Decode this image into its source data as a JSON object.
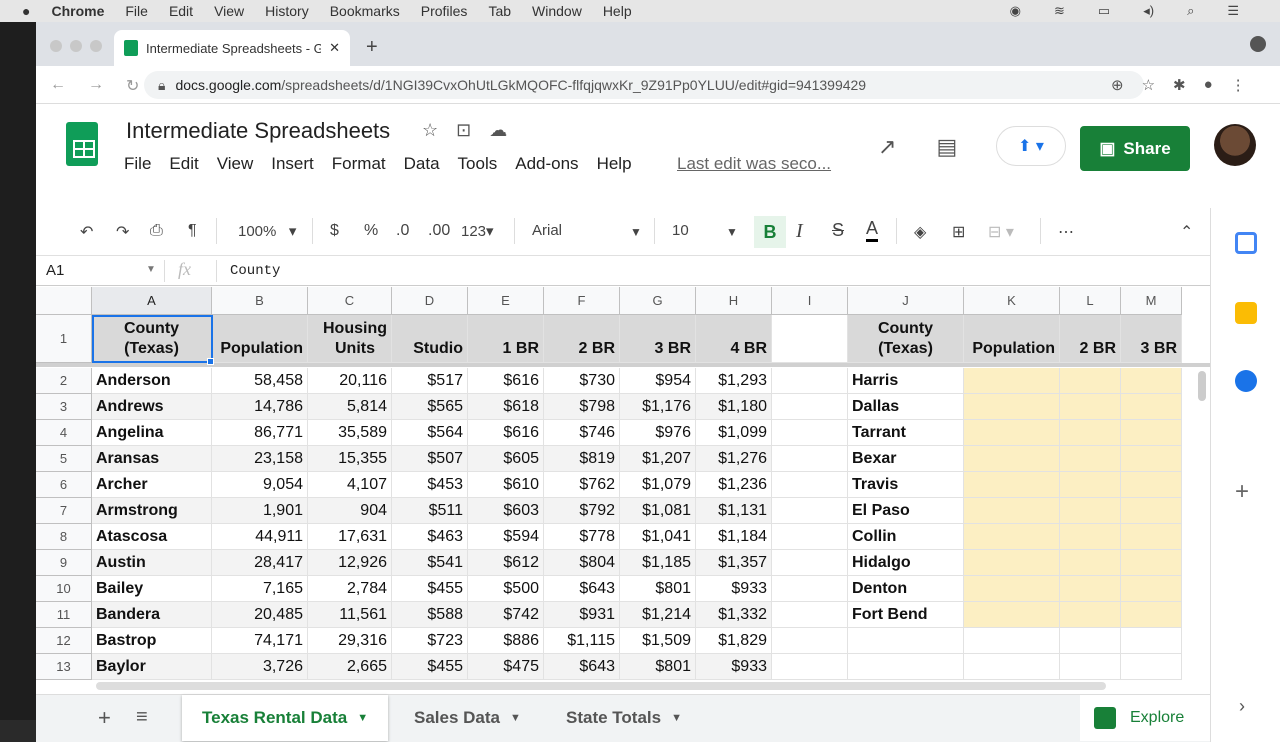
{
  "mac": {
    "apple": "",
    "menu": [
      "Chrome",
      "File",
      "Edit",
      "View",
      "History",
      "Bookmarks",
      "Profiles",
      "Tab",
      "Window",
      "Help"
    ]
  },
  "browser": {
    "tab_title": "Intermediate Spreadsheets - G",
    "url_host": "docs.google.com",
    "url_path": "/spreadsheets/d/1NGI39CvxOhUtLGkMQOFC-flfqjqwxKr_9Z91Pp0YLUU/edit#gid=941399429"
  },
  "doc": {
    "title": "Intermediate Spreadsheets",
    "menu": [
      "File",
      "Edit",
      "View",
      "Insert",
      "Format",
      "Data",
      "Tools",
      "Add-ons",
      "Help"
    ],
    "last_edit": "Last edit was seco...",
    "share": "Share"
  },
  "toolbar": {
    "zoom": "100%",
    "currency": "$",
    "percent": "%",
    "dec_less": ".0",
    "dec_more": ".00",
    "format": "123",
    "font": "Arial",
    "size": "10",
    "bold": "B",
    "italic": "I",
    "strike": "S",
    "textcolor": "A",
    "more": "⋯"
  },
  "formula": {
    "cell_ref": "A1",
    "fx": "fx",
    "value": "County"
  },
  "grid": {
    "columns": [
      "A",
      "B",
      "C",
      "D",
      "E",
      "F",
      "G",
      "H",
      "I",
      "J",
      "K",
      "L",
      "M"
    ],
    "header": [
      "County\n(Texas)",
      "Population",
      "Housing\nUnits",
      "Studio",
      "1 BR",
      "2 BR",
      "3 BR",
      "4 BR",
      "",
      "County\n(Texas)",
      "Population",
      "2 BR",
      "3 BR"
    ],
    "rows": [
      [
        "Anderson",
        "58,458",
        "20,116",
        "$517",
        "$616",
        "$730",
        "$954",
        "$1,293",
        "",
        "Harris"
      ],
      [
        "Andrews",
        "14,786",
        "5,814",
        "$565",
        "$618",
        "$798",
        "$1,176",
        "$1,180",
        "",
        "Dallas"
      ],
      [
        "Angelina",
        "86,771",
        "35,589",
        "$564",
        "$616",
        "$746",
        "$976",
        "$1,099",
        "",
        "Tarrant"
      ],
      [
        "Aransas",
        "23,158",
        "15,355",
        "$507",
        "$605",
        "$819",
        "$1,207",
        "$1,276",
        "",
        "Bexar"
      ],
      [
        "Archer",
        "9,054",
        "4,107",
        "$453",
        "$610",
        "$762",
        "$1,079",
        "$1,236",
        "",
        "Travis"
      ],
      [
        "Armstrong",
        "1,901",
        "904",
        "$511",
        "$603",
        "$792",
        "$1,081",
        "$1,131",
        "",
        "El Paso"
      ],
      [
        "Atascosa",
        "44,911",
        "17,631",
        "$463",
        "$594",
        "$778",
        "$1,041",
        "$1,184",
        "",
        "Collin"
      ],
      [
        "Austin",
        "28,417",
        "12,926",
        "$541",
        "$612",
        "$804",
        "$1,185",
        "$1,357",
        "",
        "Hidalgo"
      ],
      [
        "Bailey",
        "7,165",
        "2,784",
        "$455",
        "$500",
        "$643",
        "$801",
        "$933",
        "",
        "Denton"
      ],
      [
        "Bandera",
        "20,485",
        "11,561",
        "$588",
        "$742",
        "$931",
        "$1,214",
        "$1,332",
        "",
        "Fort Bend"
      ],
      [
        "Bastrop",
        "74,171",
        "29,316",
        "$723",
        "$886",
        "$1,115",
        "$1,509",
        "$1,829",
        "",
        ""
      ],
      [
        "Baylor",
        "3,726",
        "2,665",
        "$455",
        "$475",
        "$643",
        "$801",
        "$933",
        "",
        ""
      ]
    ]
  },
  "sheets": [
    {
      "label": "Texas Rental Data",
      "active": true
    },
    {
      "label": "Sales Data"
    },
    {
      "label": "State Totals"
    }
  ],
  "explore": "Explore",
  "colors": {
    "accent": "#188038",
    "selection": "#1a73e8",
    "highlight": "#fcefc3",
    "header_fill": "#d9d9d9"
  }
}
